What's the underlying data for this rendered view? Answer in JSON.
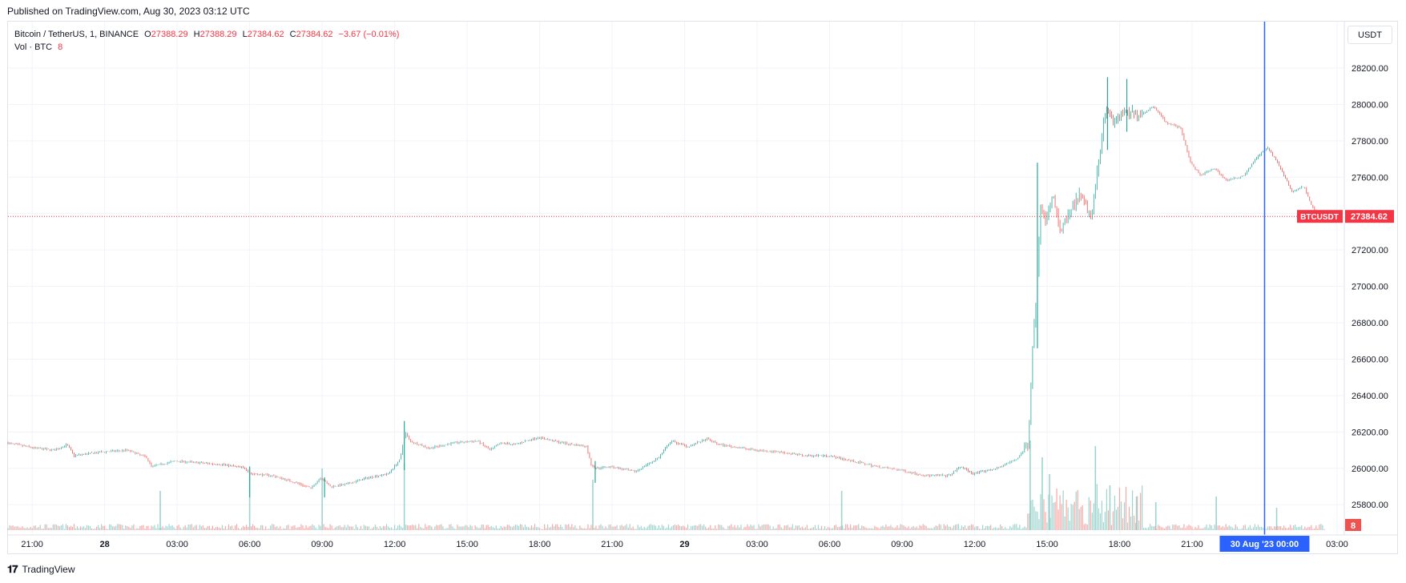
{
  "header": {
    "published": "Published on TradingView.com, Aug 30, 2023 03:12 UTC"
  },
  "legend": {
    "symbol": "Bitcoin / TetherUS, 1, BINANCE",
    "open_label": "O",
    "open": "27388.29",
    "high_label": "H",
    "high": "27388.29",
    "low_label": "L",
    "low": "27384.62",
    "close_label": "C",
    "close": "27384.62",
    "change": "−3.67 (−0.01%)",
    "volume_label": "Vol · BTC",
    "volume": "8"
  },
  "toolbar": {
    "currency": "USDT"
  },
  "footer": {
    "brand": "TradingView",
    "logo_icon": "tradingview-logo-icon"
  },
  "colors": {
    "up": "#26a69a",
    "down": "#ef5350",
    "crosshair": "#2962ff",
    "grid": "#f0f3fa",
    "price_line": "#f23645"
  },
  "chart_data": {
    "type": "candlestick",
    "symbol_tag": "BTCUSDT",
    "last_price": 27384.62,
    "last_volume_label": "8",
    "crosshair_label": "30 Aug '23   00:00",
    "y_ticks": [
      25800,
      26000,
      26200,
      26400,
      26600,
      26800,
      27000,
      27200,
      27400,
      27600,
      27800,
      28000,
      28200
    ],
    "y_tick_labels": [
      "25800.00",
      "26000.00",
      "26200.00",
      "26400.00",
      "26600.00",
      "26800.00",
      "27000.00",
      "27200.00",
      "27400.00",
      "27600.00",
      "27800.00",
      "28000.00",
      "28200.00"
    ],
    "ylim": [
      25660,
      28310
    ],
    "x_labels": [
      "21:00",
      "28",
      "03:00",
      "06:00",
      "09:00",
      "12:00",
      "15:00",
      "18:00",
      "21:00",
      "29",
      "03:00",
      "06:00",
      "09:00",
      "12:00",
      "15:00",
      "18:00",
      "21:00",
      "00:00",
      "03:00"
    ],
    "x_hours": [
      21,
      24,
      27,
      30,
      33,
      36,
      39,
      42,
      45,
      48,
      51,
      54,
      57,
      60,
      63,
      66,
      69,
      72,
      75
    ],
    "xlim_hours": [
      20.0,
      75.3
    ],
    "crosshair_hour": 72,
    "price_path": [
      [
        20.0,
        26140
      ],
      [
        21.2,
        26110
      ],
      [
        22.0,
        26100
      ],
      [
        22.5,
        26130
      ],
      [
        22.8,
        26070
      ],
      [
        24.0,
        26090
      ],
      [
        25.0,
        26100
      ],
      [
        25.8,
        26060
      ],
      [
        26.0,
        26010
      ],
      [
        27.0,
        26040
      ],
      [
        28.0,
        26030
      ],
      [
        29.0,
        26020
      ],
      [
        29.9,
        26000
      ],
      [
        30.1,
        25970
      ],
      [
        31.0,
        25960
      ],
      [
        32.0,
        25920
      ],
      [
        32.6,
        25890
      ],
      [
        33.0,
        25950
      ],
      [
        33.4,
        25900
      ],
      [
        34.0,
        25910
      ],
      [
        35.0,
        25950
      ],
      [
        35.8,
        25970
      ],
      [
        36.3,
        26050
      ],
      [
        36.5,
        26200
      ],
      [
        36.7,
        26150
      ],
      [
        37.5,
        26110
      ],
      [
        38.5,
        26140
      ],
      [
        39.5,
        26150
      ],
      [
        40.0,
        26100
      ],
      [
        40.5,
        26140
      ],
      [
        41.0,
        26130
      ],
      [
        42.0,
        26170
      ],
      [
        43.0,
        26140
      ],
      [
        44.0,
        26120
      ],
      [
        44.2,
        26020
      ],
      [
        44.4,
        26000
      ],
      [
        45.0,
        26010
      ],
      [
        46.0,
        25980
      ],
      [
        47.0,
        26060
      ],
      [
        47.5,
        26150
      ],
      [
        48.2,
        26120
      ],
      [
        49.0,
        26160
      ],
      [
        49.5,
        26130
      ],
      [
        51.0,
        26100
      ],
      [
        52.0,
        26090
      ],
      [
        53.0,
        26070
      ],
      [
        54.0,
        26070
      ],
      [
        55.0,
        26040
      ],
      [
        56.0,
        26010
      ],
      [
        57.0,
        25990
      ],
      [
        58.0,
        25960
      ],
      [
        59.0,
        25960
      ],
      [
        59.5,
        26010
      ],
      [
        60.0,
        25970
      ],
      [
        61.0,
        26000
      ],
      [
        61.8,
        26050
      ],
      [
        62.3,
        26130
      ],
      [
        62.45,
        26650
      ],
      [
        62.6,
        26900
      ],
      [
        62.8,
        27450
      ],
      [
        63.0,
        27350
      ],
      [
        63.3,
        27500
      ],
      [
        63.6,
        27300
      ],
      [
        64.0,
        27400
      ],
      [
        64.4,
        27500
      ],
      [
        64.9,
        27380
      ],
      [
        65.2,
        27700
      ],
      [
        65.5,
        28000
      ],
      [
        65.8,
        27900
      ],
      [
        66.2,
        27950
      ],
      [
        67.0,
        27950
      ],
      [
        67.5,
        27990
      ],
      [
        68.0,
        27900
      ],
      [
        68.6,
        27870
      ],
      [
        69.0,
        27680
      ],
      [
        69.4,
        27610
      ],
      [
        70.0,
        27650
      ],
      [
        70.5,
        27580
      ],
      [
        71.2,
        27610
      ],
      [
        71.8,
        27720
      ],
      [
        72.2,
        27760
      ],
      [
        72.6,
        27680
      ],
      [
        73.2,
        27520
      ],
      [
        73.7,
        27550
      ],
      [
        74.0,
        27450
      ],
      [
        74.3,
        27380
      ],
      [
        74.5,
        27384.62
      ]
    ],
    "spikes": [
      [
        30.0,
        25840,
        26010
      ],
      [
        33.1,
        25840,
        25950
      ],
      [
        36.4,
        25990,
        26260
      ],
      [
        44.3,
        25920,
        26040
      ],
      [
        62.6,
        26660,
        27680
      ],
      [
        65.5,
        27750,
        28150
      ],
      [
        66.3,
        27850,
        28140
      ]
    ],
    "volume_spikes": [
      [
        26.3,
        7
      ],
      [
        30.0,
        11
      ],
      [
        33.0,
        11
      ],
      [
        36.4,
        12
      ],
      [
        44.2,
        9
      ],
      [
        54.5,
        7
      ],
      [
        62.3,
        16
      ],
      [
        62.8,
        13
      ],
      [
        63.1,
        10
      ],
      [
        65.0,
        15
      ],
      [
        65.6,
        8
      ],
      [
        66.7,
        6
      ],
      [
        67.5,
        5
      ],
      [
        70.0,
        6
      ],
      [
        72.5,
        4
      ]
    ]
  }
}
